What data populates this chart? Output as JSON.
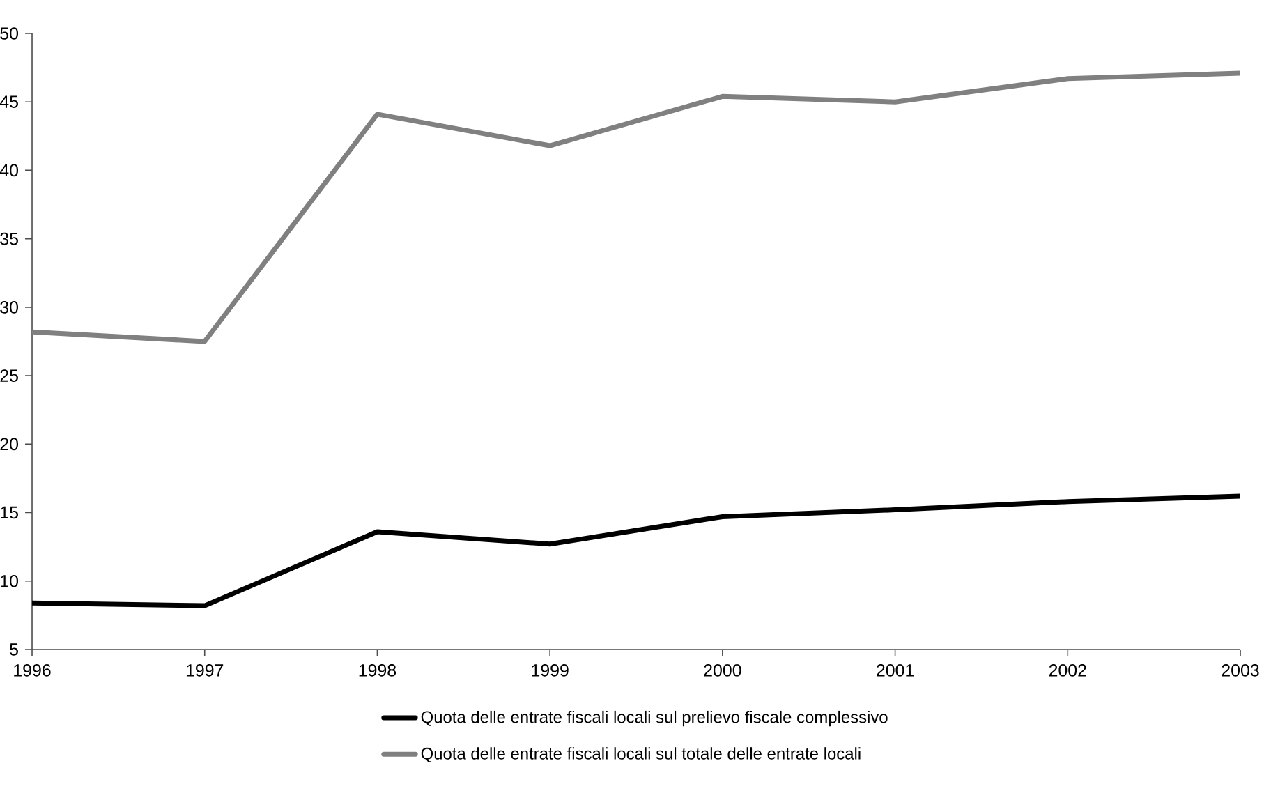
{
  "chart_data": {
    "type": "line",
    "x": [
      1996,
      1997,
      1998,
      1999,
      2000,
      2001,
      2002,
      2003
    ],
    "series": [
      {
        "name": "Quota delle entrate fiscali locali sul prelievo fiscale complessivo",
        "color": "#000000",
        "values": [
          8.4,
          8.2,
          13.6,
          12.7,
          14.7,
          15.2,
          15.8,
          16.2
        ]
      },
      {
        "name": "Quota delle entrate fiscali locali sul totale delle entrate locali",
        "color": "#808080",
        "values": [
          28.2,
          27.5,
          44.1,
          41.8,
          45.4,
          45.0,
          46.7,
          47.1
        ]
      }
    ],
    "xlim": [
      1996,
      2003
    ],
    "xticks": [
      1996,
      1997,
      1998,
      1999,
      2000,
      2001,
      2002,
      2003
    ],
    "ylim": [
      5,
      50
    ],
    "yticks": [
      5,
      10,
      15,
      20,
      25,
      30,
      35,
      40,
      45,
      50
    ],
    "grid": false,
    "legend": "bottom",
    "marker": "none",
    "line_style": "solid"
  }
}
